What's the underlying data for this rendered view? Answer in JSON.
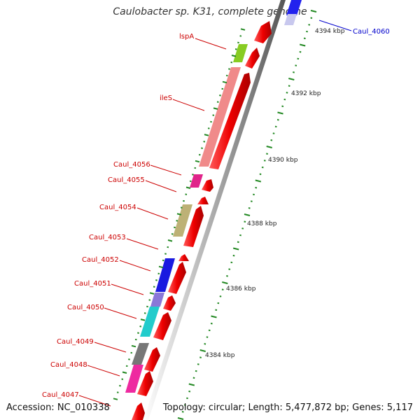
{
  "header": {
    "title": "Caulobacter sp. K31, complete genome"
  },
  "footer": {
    "accession": "Accession: NC_010338",
    "topology": "Topology: circular; Length: 5,477,872 bp; Genes: 5,117"
  },
  "scale_labels": [
    "4394 kbp",
    "4392 kbp",
    "4390 kbp",
    "4388 kbp",
    "4386 kbp",
    "4384 kbp"
  ],
  "gene_labels": [
    {
      "name": "Caul_4060",
      "color": "#0000cc"
    },
    {
      "name": "lspA",
      "color": "#cc0000"
    },
    {
      "name": "ileS",
      "color": "#cc0000"
    },
    {
      "name": "Caul_4056",
      "color": "#cc0000"
    },
    {
      "name": "Caul_4055",
      "color": "#cc0000"
    },
    {
      "name": "Caul_4054",
      "color": "#cc0000"
    },
    {
      "name": "Caul_4053",
      "color": "#cc0000"
    },
    {
      "name": "Caul_4052",
      "color": "#cc0000"
    },
    {
      "name": "Caul_4051",
      "color": "#cc0000"
    },
    {
      "name": "Caul_4050",
      "color": "#cc0000"
    },
    {
      "name": "Caul_4049",
      "color": "#cc0000"
    },
    {
      "name": "Caul_4048",
      "color": "#cc0000"
    },
    {
      "name": "Caul_4047",
      "color": "#cc0000"
    }
  ],
  "colors": {
    "backbone": "#8a8a8a",
    "gene_arrow": "#ee0000",
    "tick_green": "#228822"
  }
}
